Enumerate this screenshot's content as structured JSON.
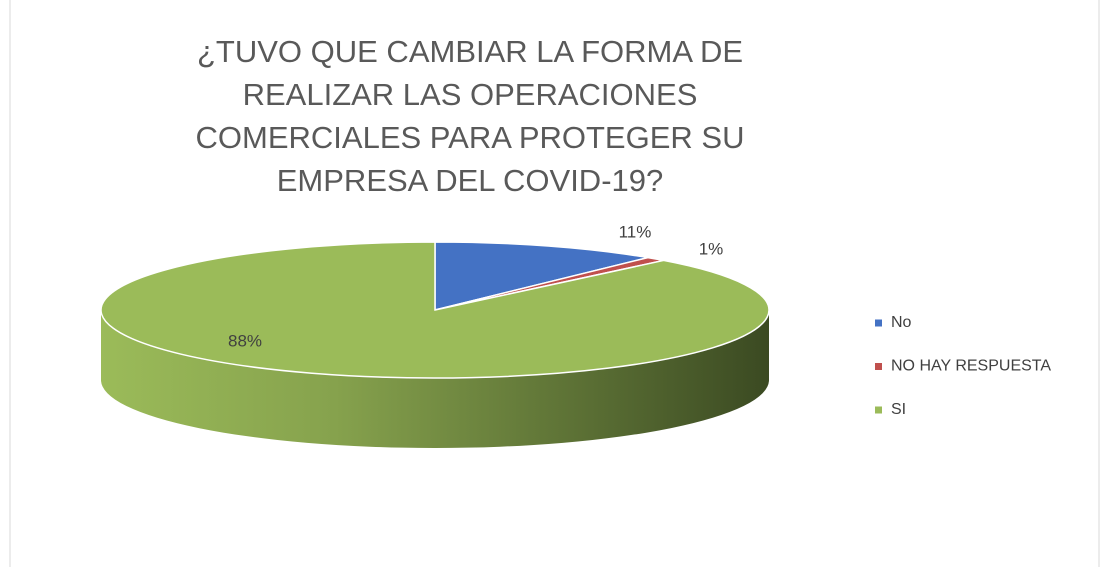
{
  "chart_data": {
    "type": "pie",
    "title": "¿TUVO QUE CAMBIAR LA FORMA DE REALIZAR LAS OPERACIONES COMERCIALES PARA PROTEGER SU EMPRESA DEL COVID-19?",
    "categories": [
      "No",
      "NO HAY RESPUESTA",
      "SI"
    ],
    "values": [
      11,
      1,
      88
    ],
    "value_labels": [
      "11%",
      "1%",
      "88%"
    ],
    "colors": [
      "#4472c4",
      "#c0504d",
      "#9bbb59"
    ],
    "legend": "right"
  }
}
